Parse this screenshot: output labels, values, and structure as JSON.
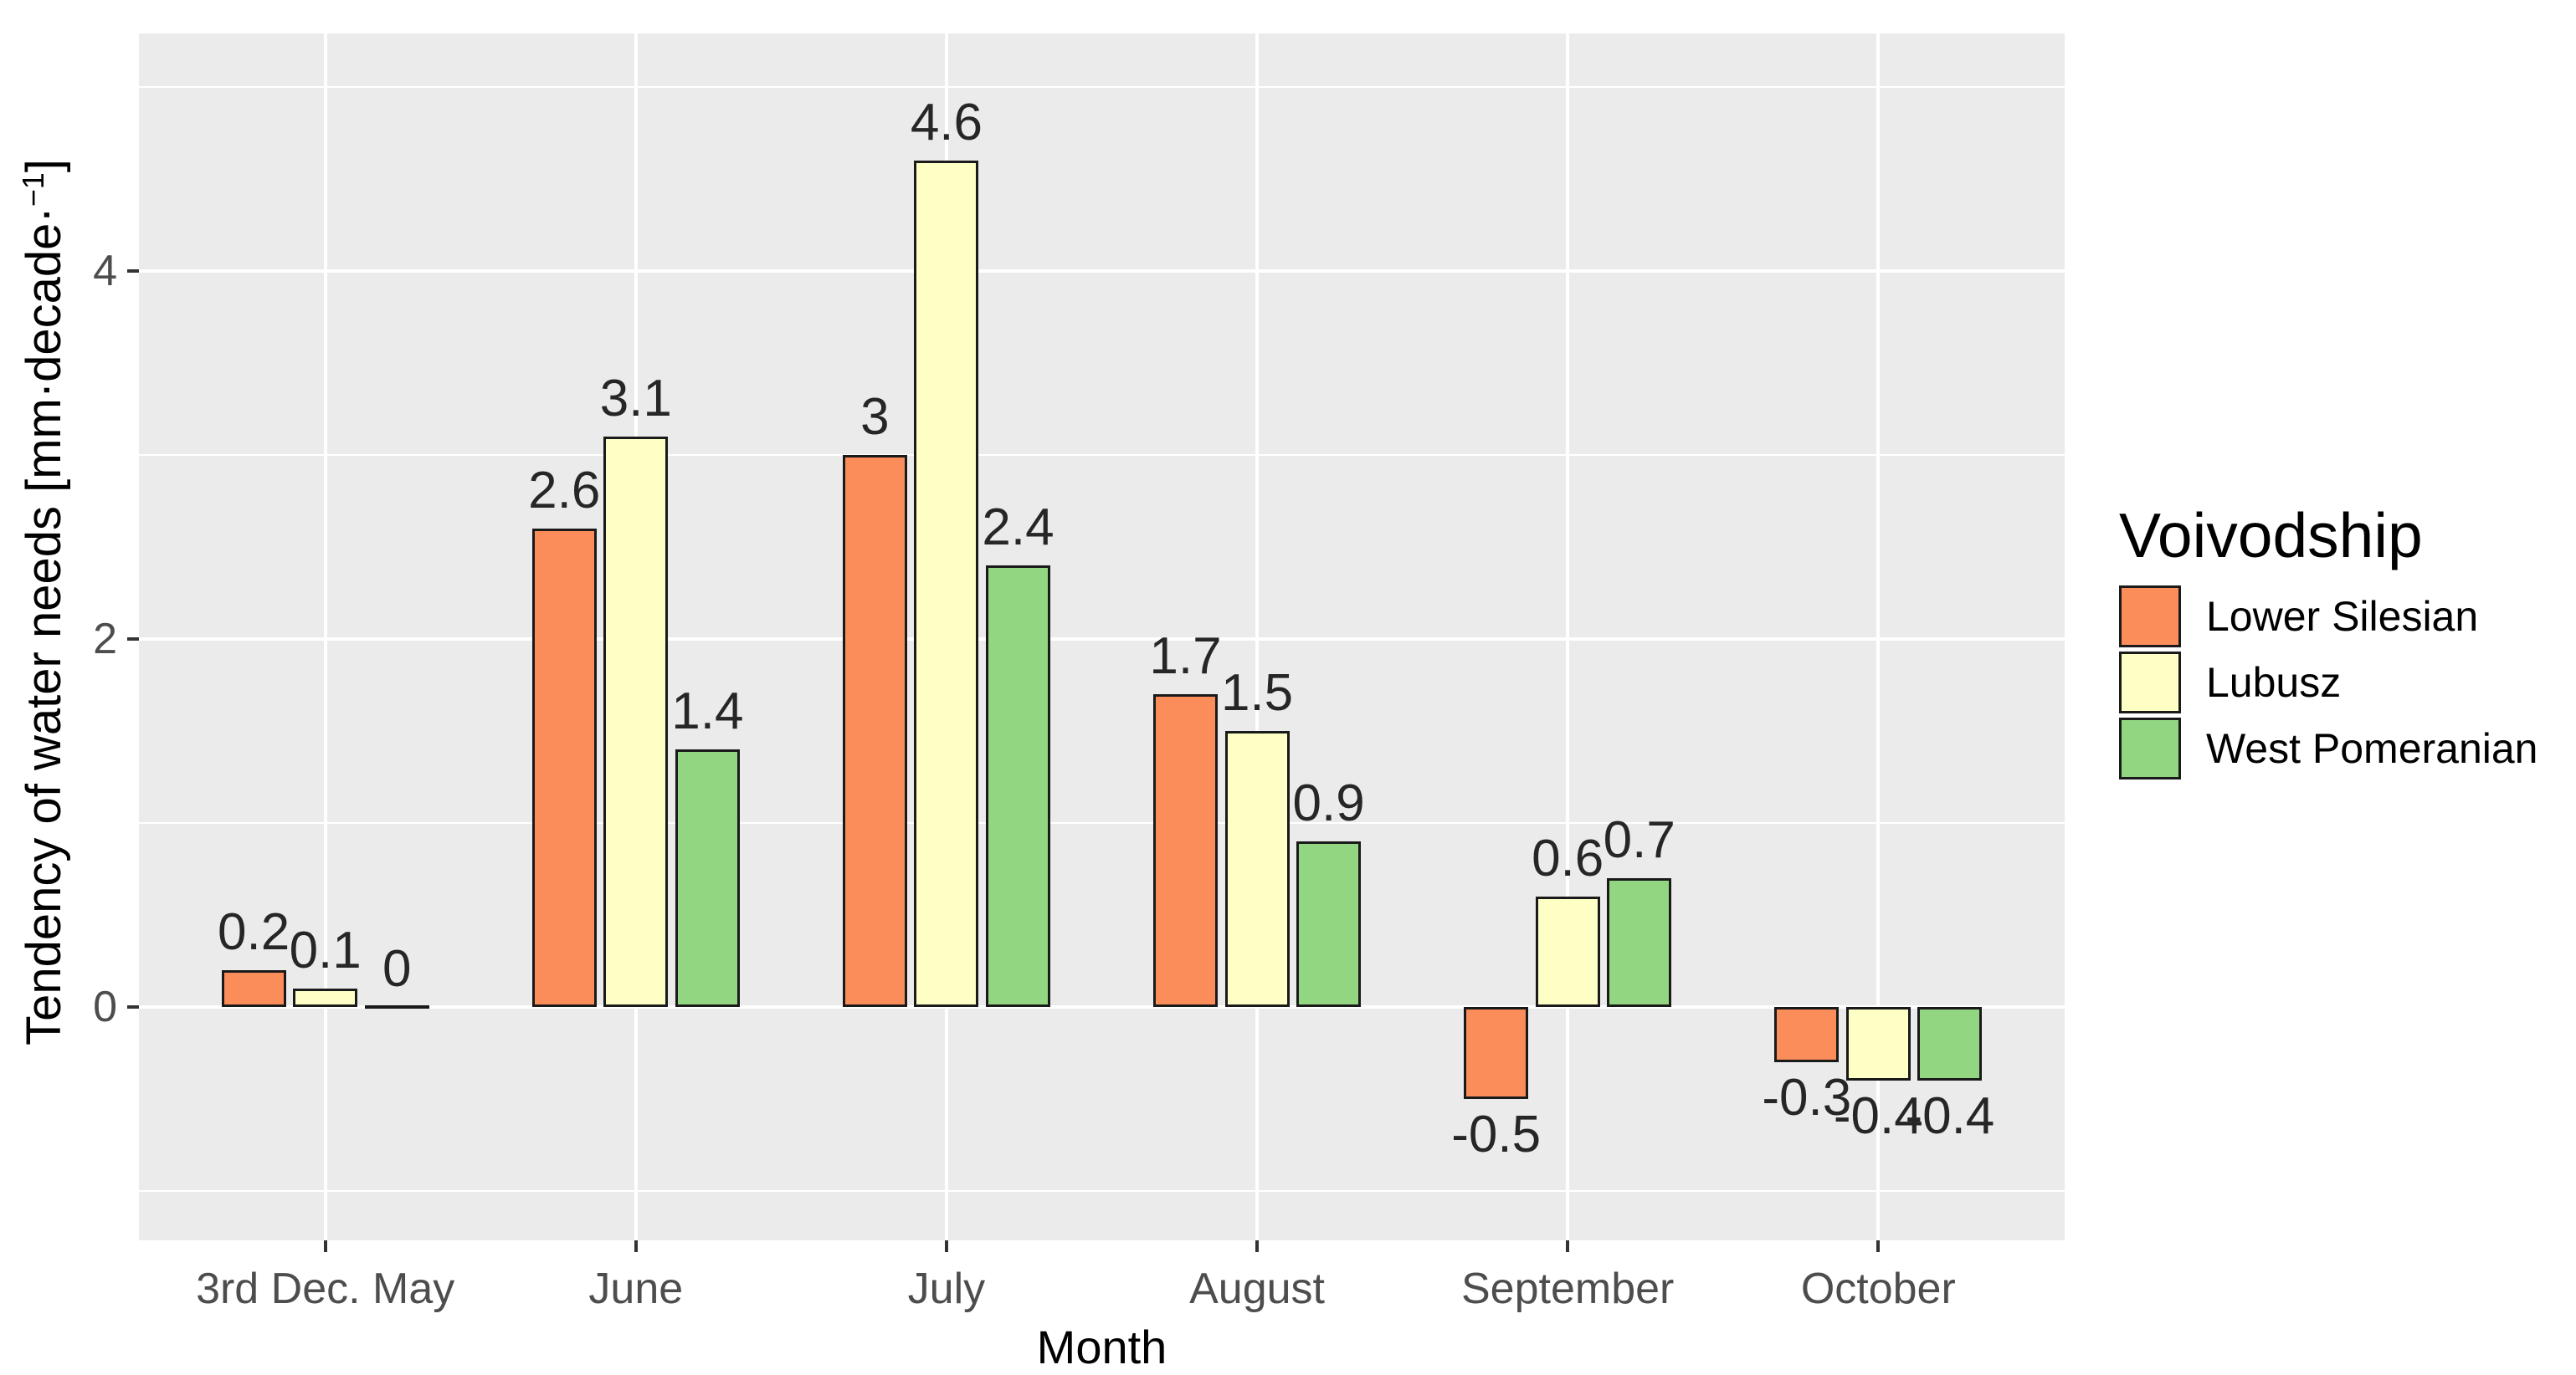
{
  "chart_data": {
    "type": "bar",
    "title": "",
    "xlabel": "Month",
    "ylabel": "Tendency of water needs [mm·decade·−1]",
    "ylabel_prefix": "Tendency of water needs [mm·decade·",
    "ylabel_sup": "−1",
    "ylabel_suffix": "]",
    "legend_title": "Voivodship",
    "legend_position": "right",
    "grid": true,
    "categories": [
      "3rd Dec. May",
      "June",
      "July",
      "August",
      "September",
      "October"
    ],
    "series": [
      {
        "name": "Lower Silesian",
        "color": "#FB8D5A",
        "values": [
          0.2,
          2.6,
          3,
          1.7,
          -0.5,
          -0.3
        ],
        "labels": [
          "0.2",
          "2.6",
          "3",
          "1.7",
          "-0.5",
          "-0.3"
        ]
      },
      {
        "name": "Lubusz",
        "color": "#FEFFC5",
        "values": [
          0.1,
          3.1,
          4.6,
          1.5,
          0.6,
          -0.4
        ],
        "labels": [
          "0.1",
          "3.1",
          "4.6",
          "1.5",
          "0.6",
          "-0.4"
        ]
      },
      {
        "name": "West Pomeranian",
        "color": "#93D682",
        "values": [
          0,
          1.4,
          2.4,
          0.9,
          0.7,
          -0.4
        ],
        "labels": [
          "0",
          "1.4",
          "2.4",
          "0.9",
          "0.7",
          "-0.4"
        ]
      }
    ],
    "y_axis": {
      "major_ticks": [
        0,
        2,
        4
      ],
      "major_tick_labels": [
        "0",
        "2",
        "4"
      ],
      "minor_ticks": [
        -1,
        1,
        3,
        5
      ],
      "ylim": [
        -1.27,
        5.29
      ]
    },
    "colors": {
      "panel_bg": "#EBEBEB",
      "gridline": "#FFFFFF",
      "bar_border": "#1A1A1A",
      "tick_label": "#4D4D4D",
      "axis_title": "#000000",
      "bar_value_label": "#262626"
    }
  }
}
